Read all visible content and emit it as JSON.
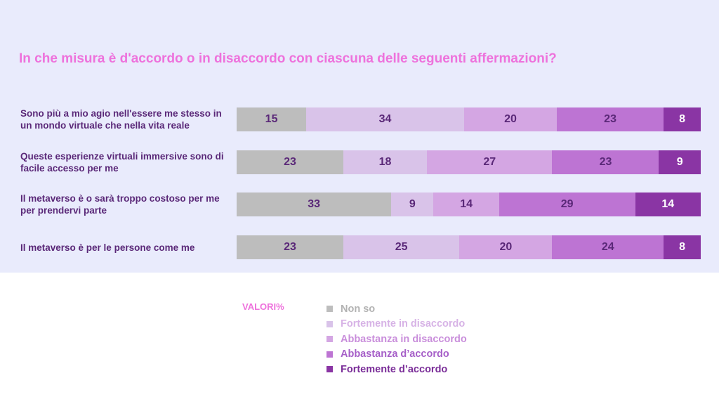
{
  "title": "In che misura è d'accordo o in disaccordo con ciascuna delle seguenti affermazioni?",
  "legend_title": "VALORI%",
  "colors": {
    "panel_bg": "#e9ebfc",
    "title": "#ee72dc",
    "label": "#5a2878"
  },
  "chart_data": {
    "type": "bar",
    "orientation": "horizontal",
    "stacked": true,
    "percent_stacked": true,
    "categories": [
      "Sono più a mio agio nell'essere me stesso in un mondo virtuale che nella vita reale",
      "Queste esperienze virtuali immersive sono di facile accesso per me",
      "Il metaverso è o sarà troppo costoso per me per prendervi parte",
      "Il metaverso è per le persone come me"
    ],
    "series": [
      {
        "name": "Non so",
        "color": "#bdbdbd",
        "text_color": "#5a2878",
        "values": [
          15,
          23,
          33,
          23
        ]
      },
      {
        "name": "Fortemente in disaccordo",
        "color": "#d9c3e9",
        "text_color": "#5a2878",
        "values": [
          34,
          18,
          9,
          25
        ]
      },
      {
        "name": "Abbastanza in disaccordo",
        "color": "#d4a6e3",
        "text_color": "#5a2878",
        "values": [
          20,
          27,
          14,
          20
        ]
      },
      {
        "name": "Abbastanza d’accordo",
        "color": "#bd74d3",
        "text_color": "#5a2878",
        "values": [
          23,
          23,
          29,
          24
        ]
      },
      {
        "name": "Fortemente d’accordo",
        "color": "#8a35a4",
        "text_color": "#ffffff",
        "values": [
          8,
          9,
          14,
          8
        ]
      }
    ],
    "legend_text_colors": [
      "#b3b3b3",
      "#d7b3e6",
      "#c98edb",
      "#a65fc8",
      "#7a2d98"
    ],
    "legend_position": "bottom",
    "grid": false
  }
}
